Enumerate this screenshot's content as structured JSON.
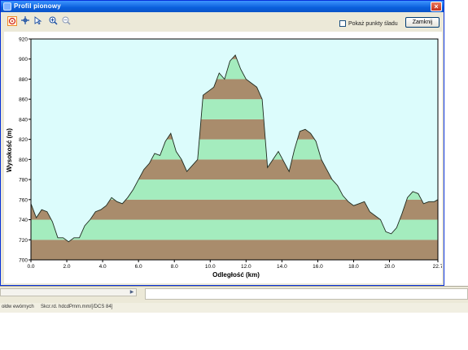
{
  "window": {
    "title": "Profil pionowy",
    "close_label": "×"
  },
  "toolbar": {
    "tools": [
      "target-tool-icon",
      "move-tool-icon",
      "select-tool-icon",
      "zoom-in-icon",
      "zoom-out-icon"
    ],
    "checkbox_label": "Pokaż punkty śladu",
    "checkbox_checked": false,
    "close_button_label": "Zamknij"
  },
  "chart_data": {
    "type": "area",
    "title": "",
    "xlabel": "Odległość  (km)",
    "ylabel": "Wysokość  (m)",
    "xlim": [
      0,
      22.7
    ],
    "ylim": [
      700,
      920
    ],
    "x_ticks": [
      "0.0",
      "2.0",
      "4.0",
      "6.0",
      "8.0",
      "10.0",
      "12.0",
      "14.0",
      "16.0",
      "18.0",
      "20.0",
      "22.7"
    ],
    "y_ticks": [
      "920",
      "900",
      "880",
      "860",
      "840",
      "820",
      "800",
      "780",
      "760",
      "740",
      "720",
      "700"
    ],
    "band_colors": [
      "#a98c6c",
      "#a4ecbe"
    ],
    "background": "#dcfcfc",
    "x": [
      0,
      0.3,
      0.6,
      0.9,
      1.2,
      1.5,
      1.8,
      2.1,
      2.4,
      2.7,
      3.0,
      3.3,
      3.6,
      3.9,
      4.2,
      4.5,
      4.8,
      5.1,
      5.4,
      5.7,
      6.0,
      6.3,
      6.6,
      6.9,
      7.2,
      7.5,
      7.8,
      8.1,
      8.4,
      8.7,
      9.0,
      9.3,
      9.6,
      9.9,
      10.2,
      10.5,
      10.8,
      11.1,
      11.4,
      11.7,
      12.0,
      12.3,
      12.6,
      12.9,
      13.2,
      13.5,
      13.8,
      14.1,
      14.4,
      14.7,
      15.0,
      15.3,
      15.6,
      15.9,
      16.2,
      16.5,
      16.8,
      17.1,
      17.4,
      17.7,
      18.0,
      18.3,
      18.6,
      18.9,
      19.2,
      19.5,
      19.8,
      20.1,
      20.4,
      20.7,
      21.0,
      21.3,
      21.6,
      21.9,
      22.2,
      22.5,
      22.7
    ],
    "y": [
      756,
      742,
      750,
      748,
      738,
      722,
      722,
      718,
      722,
      722,
      734,
      740,
      748,
      750,
      754,
      762,
      758,
      756,
      762,
      770,
      780,
      790,
      796,
      806,
      804,
      818,
      826,
      808,
      800,
      788,
      794,
      800,
      864,
      868,
      872,
      886,
      880,
      898,
      904,
      890,
      880,
      876,
      872,
      860,
      792,
      800,
      808,
      798,
      788,
      810,
      828,
      830,
      826,
      818,
      800,
      790,
      780,
      774,
      764,
      758,
      754,
      756,
      758,
      748,
      744,
      740,
      728,
      726,
      732,
      746,
      762,
      768,
      766,
      756,
      758,
      758,
      760
    ]
  },
  "bottom": {
    "status_left": "ołdw ewórnych",
    "status_right": "Skcr.rd. hdcdPmm.mm/[/DCS 84]"
  }
}
